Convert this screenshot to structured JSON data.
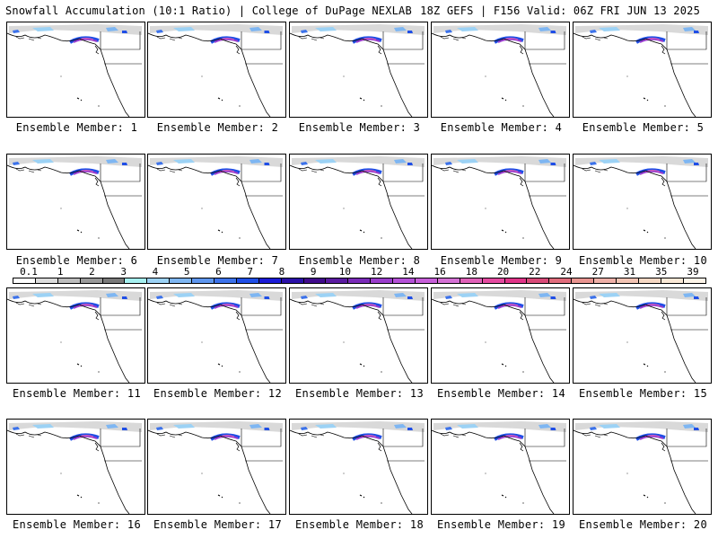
{
  "header": {
    "left_title": "Snowfall Accumulation (10:1 Ratio) | College of DuPage NEXLAB",
    "right_title": "18Z GEFS | F156 Valid: 06Z FRI JUN 13 2025"
  },
  "members": [
    {
      "label": "Ensemble Member: 1"
    },
    {
      "label": "Ensemble Member: 2"
    },
    {
      "label": "Ensemble Member: 3"
    },
    {
      "label": "Ensemble Member: 4"
    },
    {
      "label": "Ensemble Member: 5"
    },
    {
      "label": "Ensemble Member: 6"
    },
    {
      "label": "Ensemble Member: 7"
    },
    {
      "label": "Ensemble Member: 8"
    },
    {
      "label": "Ensemble Member: 9"
    },
    {
      "label": "Ensemble Member: 10"
    },
    {
      "label": "Ensemble Member: 11"
    },
    {
      "label": "Ensemble Member: 12"
    },
    {
      "label": "Ensemble Member: 13"
    },
    {
      "label": "Ensemble Member: 14"
    },
    {
      "label": "Ensemble Member: 15"
    },
    {
      "label": "Ensemble Member: 16"
    },
    {
      "label": "Ensemble Member: 17"
    },
    {
      "label": "Ensemble Member: 18"
    },
    {
      "label": "Ensemble Member: 19"
    },
    {
      "label": "Ensemble Member: 20"
    }
  ],
  "colorbar": {
    "tick_labels": [
      "0.1",
      "1",
      "2",
      "3",
      "4",
      "5",
      "6",
      "7",
      "8",
      "9",
      "10",
      "12",
      "14",
      "16",
      "18",
      "20",
      "22",
      "24",
      "27",
      "31",
      "35",
      "39"
    ],
    "colors": [
      "#ffffff",
      "#dcdcdc",
      "#bdbdbd",
      "#9a9a9a",
      "#7a7a7a",
      "#a6f0f0",
      "#9cd2f5",
      "#7eb6f2",
      "#5e96ee",
      "#3c72ea",
      "#1f4ee6",
      "#1a1ad6",
      "#2a10a8",
      "#400a8c",
      "#5a1aa0",
      "#7a2ab8",
      "#9a3ccc",
      "#b450d6",
      "#c65ed8",
      "#d470d4",
      "#e060b8",
      "#e44aa0",
      "#e03488",
      "#d84a78",
      "#e06c7c",
      "#e89490",
      "#eeb0a8",
      "#f2c4b4",
      "#f6d8c4",
      "#fae8d6",
      "#fdf4e8"
    ]
  }
}
